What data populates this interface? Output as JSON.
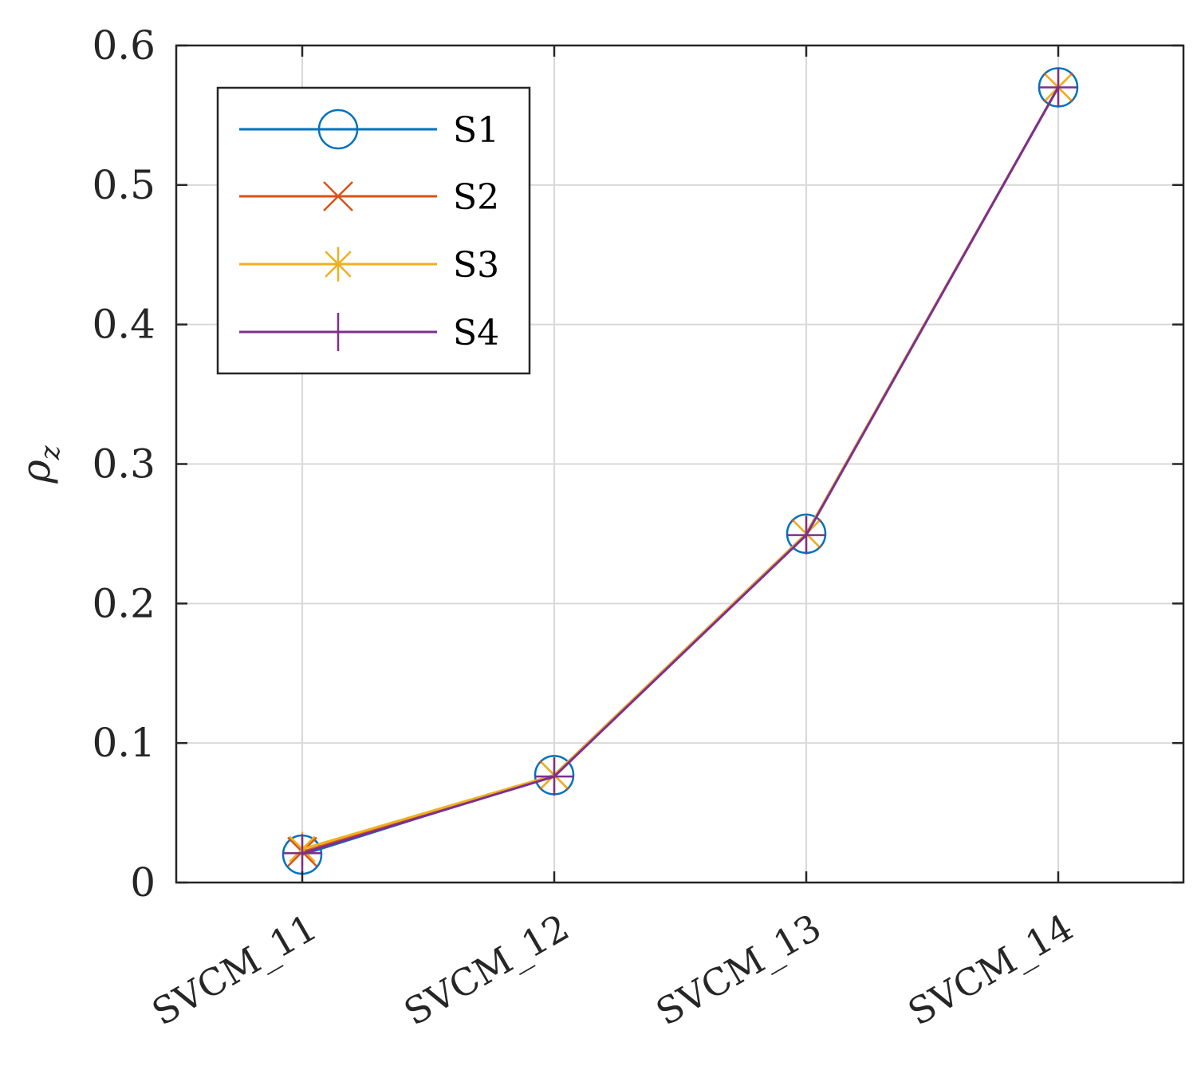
{
  "chart_data": {
    "type": "line",
    "title": "",
    "xlabel": "",
    "ylabel": "ρz",
    "ylabel_main": "ρ",
    "ylabel_sub": "z",
    "categories": [
      "SVCM_11",
      "SVCM_12",
      "SVCM_13",
      "SVCM_14"
    ],
    "ylim": [
      0,
      0.6
    ],
    "yticks": [
      0,
      0.1,
      0.2,
      0.3,
      0.4,
      0.5,
      0.6
    ],
    "ytick_labels": [
      "0",
      "0.1",
      "0.2",
      "0.3",
      "0.4",
      "0.5",
      "0.6"
    ],
    "grid": true,
    "legend_position": "top-left",
    "series": [
      {
        "name": "S1",
        "marker": "circle",
        "color": "#0072BD",
        "values": [
          0.02,
          0.077,
          0.25,
          0.57
        ]
      },
      {
        "name": "S2",
        "marker": "x",
        "color": "#D95319",
        "values": [
          0.022,
          0.077,
          0.25,
          0.57
        ]
      },
      {
        "name": "S3",
        "marker": "asterisk",
        "color": "#EDB120",
        "values": [
          0.024,
          0.077,
          0.25,
          0.57
        ]
      },
      {
        "name": "S4",
        "marker": "plus",
        "color": "#7E2F8E",
        "values": [
          0.021,
          0.076,
          0.249,
          0.57
        ]
      }
    ]
  }
}
